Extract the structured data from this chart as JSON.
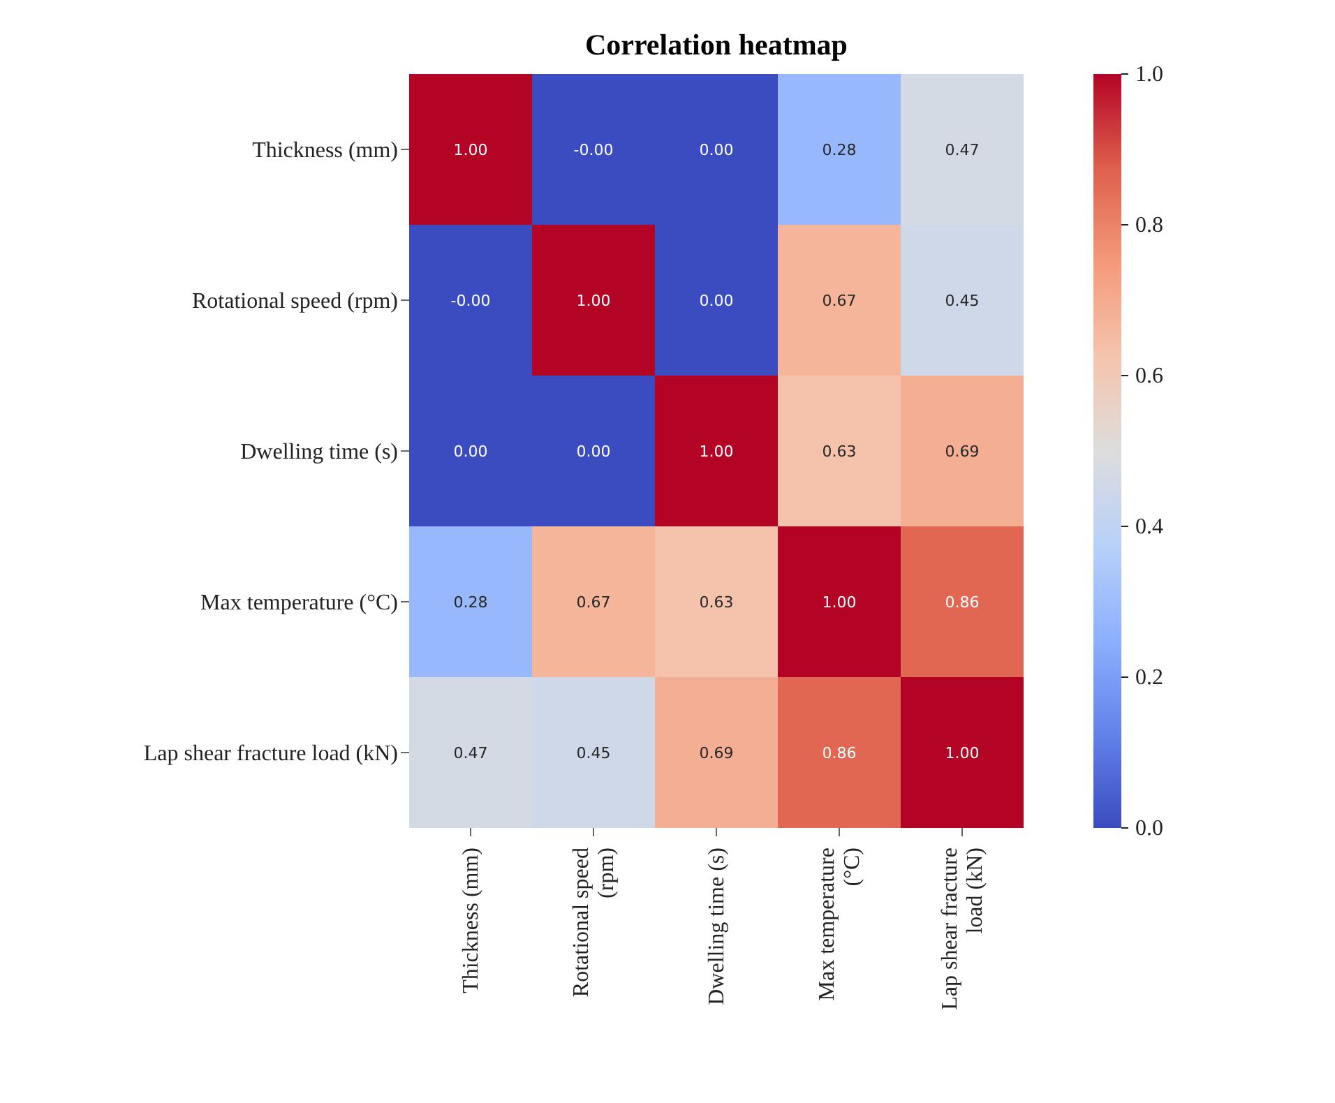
{
  "chart_data": {
    "type": "heatmap",
    "title": "Correlation heatmap",
    "categories": [
      "Thickness (mm)",
      "Rotational speed (rpm)",
      "Dwelling time (s)",
      "Max temperature (°C)",
      "Lap shear fracture load (kN)"
    ],
    "y_categories": [
      "Thickness (mm)",
      "Rotational speed (rpm)",
      "Dwelling time (s) ",
      "Max temperature (°C)",
      "Lap shear fracture load (kN)"
    ],
    "cells": [
      [
        1,
        0,
        0,
        0.28,
        0.47
      ],
      [
        0,
        1,
        0,
        0.67,
        0.45
      ],
      [
        0,
        0,
        1,
        0.63,
        0.69
      ],
      [
        0.28,
        0.67,
        0.63,
        1,
        0.86
      ],
      [
        0.47,
        0.45,
        0.69,
        0.86,
        1
      ]
    ],
    "cell_labels": [
      [
        "1.00",
        "-0.00",
        "0.00",
        "0.28",
        "0.47"
      ],
      [
        "-0.00",
        "1.00",
        "0.00",
        "0.67",
        "0.45"
      ],
      [
        "0.00",
        "0.00",
        "1.00",
        "0.63",
        "0.69"
      ],
      [
        "0.28",
        "0.67",
        "0.63",
        "1.00",
        "0.86"
      ],
      [
        "0.47",
        "0.45",
        "0.69",
        "0.86",
        "1.00"
      ]
    ],
    "clim": [
      0,
      1
    ],
    "cticks": [
      {
        "value": 0,
        "label": "0.0"
      },
      {
        "value": 0.2,
        "label": "0.2"
      },
      {
        "value": 0.4,
        "label": "0.4"
      },
      {
        "value": 0.6,
        "label": "0.6"
      },
      {
        "value": 0.8,
        "label": "0.8"
      },
      {
        "value": 1,
        "label": "1.0"
      }
    ]
  }
}
